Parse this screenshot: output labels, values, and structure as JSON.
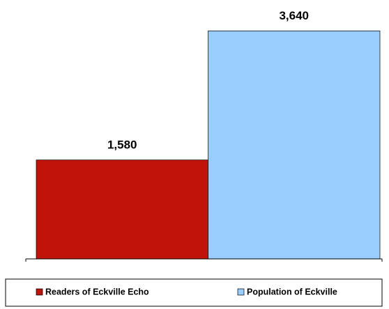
{
  "chart_data": {
    "type": "bar",
    "series": [
      {
        "name": "Readers of Eckville Echo",
        "color": "#c0140a",
        "values": [
          1580
        ],
        "value_labels": [
          "1,580"
        ]
      },
      {
        "name": "Population of Eckville",
        "color": "#99ccff",
        "values": [
          3640
        ],
        "value_labels": [
          "3,640"
        ]
      }
    ],
    "ylim": [
      0,
      4000
    ],
    "legend": "bottom"
  }
}
